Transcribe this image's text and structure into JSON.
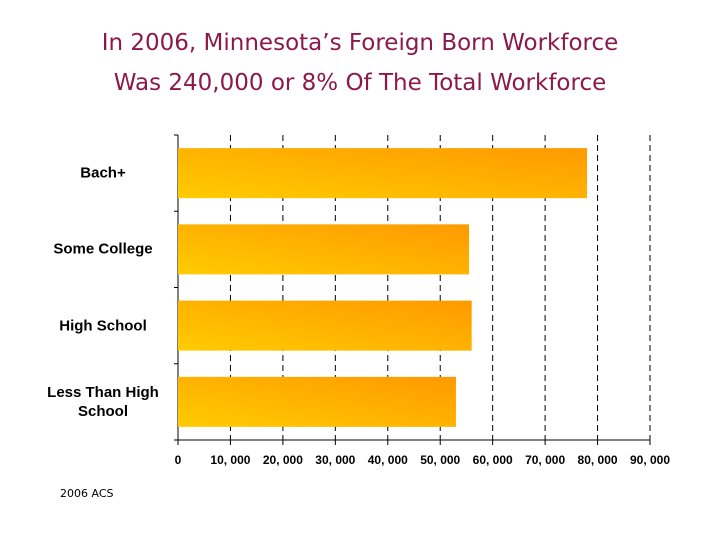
{
  "chart_data": {
    "type": "hbar",
    "title": [
      "In 2006, Minnesota’s Foreign Born Workforce",
      "Was 240,000 or 8% Of The Total Workforce"
    ],
    "categories": [
      "Bach+",
      "Some College",
      "High School",
      "Less Than High School"
    ],
    "values": [
      78000,
      55500,
      56000,
      53000
    ],
    "color": [
      "#ffcc00",
      "#ff9900"
    ],
    "xlim": [
      0,
      90000
    ],
    "xticks": [
      0,
      {
        "value": 10000,
        "label": "10, 000"
      },
      {
        "value": 20000,
        "label": "20, 000"
      },
      {
        "value": 30000,
        "label": "30, 000"
      },
      {
        "value": 40000,
        "label": "40, 000"
      },
      {
        "value": 50000,
        "label": "50, 000"
      },
      {
        "value": 60000,
        "label": "60, 000"
      },
      {
        "value": 70000,
        "label": "70, 000"
      },
      {
        "value": 80000,
        "label": "80, 000"
      },
      {
        "value": 90000,
        "label": "90, 000"
      }
    ],
    "grid": true,
    "source": "2006 ACS"
  }
}
